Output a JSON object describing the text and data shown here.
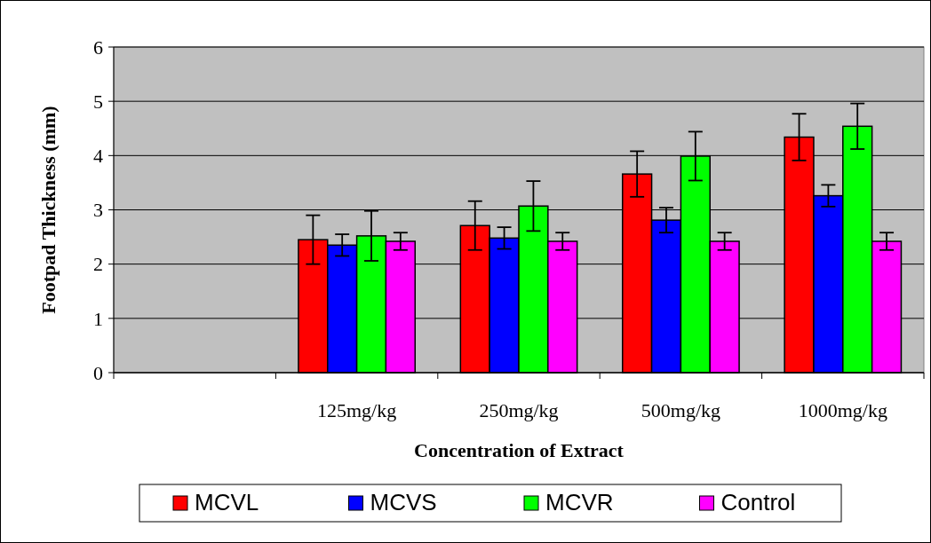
{
  "chart_data": {
    "type": "bar",
    "xlabel": "Concentration of Extract",
    "ylabel": "Footpad Thickness (mm)",
    "categories": [
      null,
      "125mg/kg",
      "250mg/kg",
      "500mg/kg",
      "1000mg/kg"
    ],
    "series": [
      {
        "name": "MCVL",
        "color": "#ff0000",
        "values": [
          null,
          2.45,
          2.71,
          3.66,
          4.34
        ],
        "errors": [
          null,
          0.45,
          0.45,
          0.42,
          0.43
        ]
      },
      {
        "name": "MCVS",
        "color": "#0000ff",
        "values": [
          null,
          2.35,
          2.48,
          2.81,
          3.26
        ],
        "errors": [
          null,
          0.2,
          0.2,
          0.23,
          0.2
        ]
      },
      {
        "name": "MCVR",
        "color": "#00ff00",
        "values": [
          null,
          2.52,
          3.07,
          3.99,
          4.54
        ],
        "errors": [
          null,
          0.46,
          0.46,
          0.45,
          0.42
        ]
      },
      {
        "name": "Control",
        "color": "#ff00ff",
        "values": [
          null,
          2.42,
          2.42,
          2.42,
          2.42
        ],
        "errors": [
          null,
          0.16,
          0.16,
          0.16,
          0.16
        ]
      }
    ],
    "ylim": [
      0,
      6
    ],
    "yticks": [
      0,
      1,
      2,
      3,
      4,
      5,
      6
    ],
    "grid": "y",
    "legend": "bottom"
  }
}
